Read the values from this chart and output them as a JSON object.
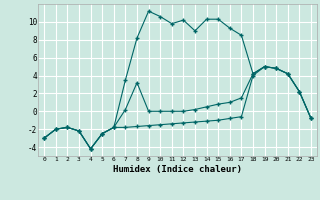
{
  "xlabel": "Humidex (Indice chaleur)",
  "background_color": "#cce8e0",
  "grid_color": "#ffffff",
  "line_color": "#006666",
  "x_values": [
    0,
    1,
    2,
    3,
    4,
    5,
    6,
    7,
    8,
    9,
    10,
    11,
    12,
    13,
    14,
    15,
    16,
    17,
    18,
    19,
    20,
    21,
    22,
    23
  ],
  "series1": [
    -3.0,
    -2.0,
    -1.8,
    -2.2,
    -4.2,
    -2.5,
    -1.8,
    3.5,
    8.2,
    11.2,
    10.6,
    9.8,
    10.2,
    9.0,
    10.3,
    10.3,
    9.3,
    8.5,
    4.2,
    5.0,
    4.8,
    4.2,
    2.2,
    -0.8
  ],
  "series2": [
    -3.0,
    -2.0,
    -1.8,
    -2.2,
    -4.2,
    -2.5,
    -1.8,
    0.2,
    3.2,
    0.0,
    0.0,
    0.0,
    0.0,
    0.2,
    0.5,
    0.8,
    1.0,
    1.5,
    4.2,
    5.0,
    4.8,
    4.2,
    2.2,
    -0.8
  ],
  "series3": [
    -3.0,
    -2.0,
    -1.8,
    -2.2,
    -4.2,
    -2.5,
    -1.8,
    -1.8,
    -1.7,
    -1.6,
    -1.5,
    -1.4,
    -1.3,
    -1.2,
    -1.1,
    -1.0,
    -0.8,
    -0.6,
    4.0,
    5.0,
    4.8,
    4.2,
    2.2,
    -0.8
  ],
  "ylim": [
    -5,
    12
  ],
  "xlim": [
    -0.5,
    23.5
  ],
  "yticks": [
    -4,
    -2,
    0,
    2,
    4,
    6,
    8,
    10
  ]
}
